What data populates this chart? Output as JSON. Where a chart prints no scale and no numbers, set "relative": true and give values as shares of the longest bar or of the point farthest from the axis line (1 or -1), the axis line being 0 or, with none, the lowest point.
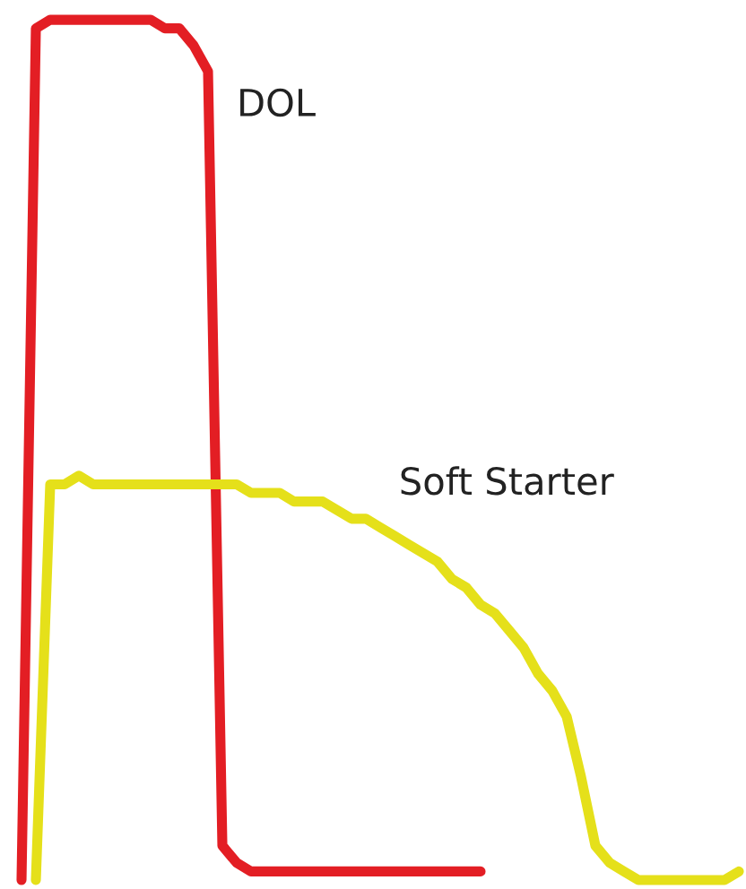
{
  "chart_data": {
    "type": "line",
    "relative": true,
    "line_style": "solid",
    "marker": "none",
    "legend": false,
    "categories": [
      null,
      null,
      null,
      null,
      null,
      null,
      null,
      null,
      null,
      null,
      null,
      null,
      null,
      null,
      null,
      null,
      null,
      null,
      null,
      null,
      null,
      null,
      null,
      null,
      null,
      null,
      null,
      null,
      null,
      null,
      null,
      null,
      null,
      null,
      null,
      null,
      null,
      null,
      null,
      null,
      null,
      null,
      null,
      null,
      null,
      null,
      null,
      null,
      null,
      null,
      null
    ],
    "series": [
      {
        "name": "DOL",
        "color": "#e31e24",
        "values": [
          0,
          0.99,
          1,
          1,
          1,
          1,
          1,
          1,
          1,
          1,
          0.99,
          0.99,
          0.97,
          0.94,
          0.04,
          0.02,
          0.01,
          0.01,
          0.01,
          0.01,
          0.01,
          0.01,
          0.01,
          0.01,
          0.01,
          0.01,
          0.01,
          0.01,
          0.01,
          0.01,
          0.01,
          0.01,
          0.01,
          null,
          null,
          null,
          null,
          null,
          null,
          null,
          null,
          null,
          null,
          null,
          null,
          null,
          null,
          null,
          null,
          null,
          null
        ]
      },
      {
        "name": "Soft Starter",
        "color": "#e5e01a",
        "values": [
          null,
          0,
          0.46,
          0.46,
          0.47,
          0.46,
          0.46,
          0.46,
          0.46,
          0.46,
          0.46,
          0.46,
          0.46,
          0.46,
          0.46,
          0.46,
          0.45,
          0.45,
          0.45,
          0.44,
          0.44,
          0.44,
          0.43,
          0.42,
          0.42,
          0.41,
          0.4,
          0.39,
          0.38,
          0.37,
          0.35,
          0.34,
          0.32,
          0.31,
          0.29,
          0.27,
          0.24,
          0.22,
          0.19,
          0.12,
          0.04,
          0.02,
          0.01,
          0,
          0,
          0,
          0,
          0,
          0,
          0,
          0.01
        ]
      }
    ]
  }
}
